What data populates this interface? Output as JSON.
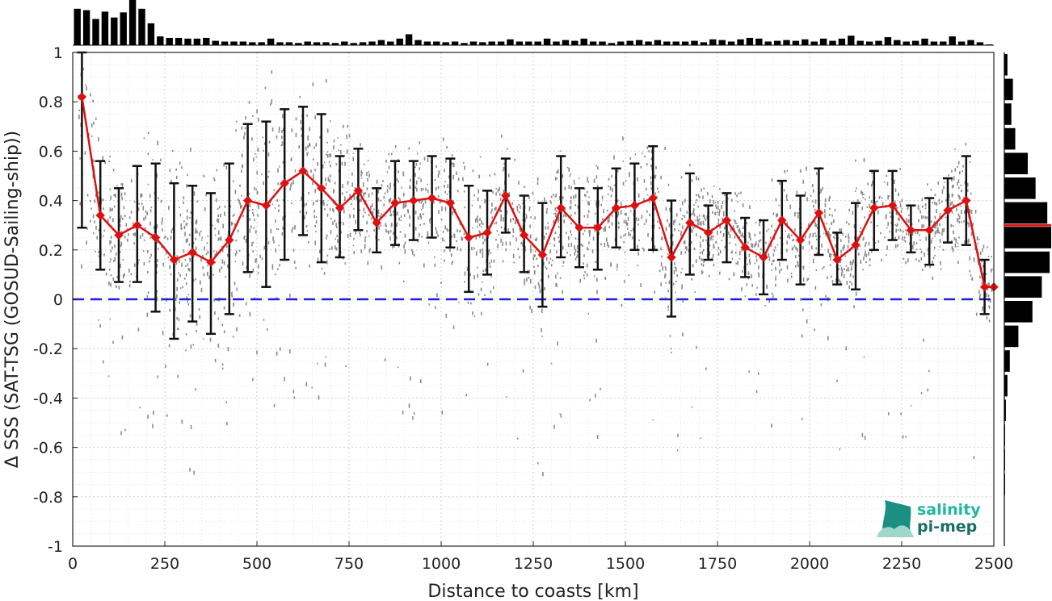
{
  "chart_data": {
    "type": "line",
    "xlabel": "Distance to coasts [km]",
    "ylabel": "Δ SSS (SAT-TSG (GOSUD-Sailing-ship))",
    "xlim": [
      0,
      2500
    ],
    "ylim": [
      -1,
      1
    ],
    "x_ticks": [
      "0",
      "250",
      "500",
      "750",
      "1000",
      "1250",
      "1500",
      "1750",
      "2000",
      "2250",
      "2500"
    ],
    "y_ticks": [
      "-1",
      "-0.8",
      "-0.6",
      "-0.4",
      "-0.2",
      "0",
      "0.2",
      "0.4",
      "0.6",
      "0.8",
      "1"
    ],
    "grid": true,
    "reference_line": {
      "y": 0,
      "color": "#1f1fd6",
      "style": "dashed"
    },
    "series": [
      {
        "color": "#dd1111",
        "marker": "diamond",
        "x": [
          25,
          75,
          125,
          175,
          225,
          275,
          325,
          375,
          425,
          475,
          525,
          575,
          625,
          675,
          725,
          775,
          825,
          875,
          925,
          975,
          1025,
          1075,
          1125,
          1175,
          1225,
          1275,
          1325,
          1375,
          1425,
          1475,
          1525,
          1575,
          1625,
          1675,
          1725,
          1775,
          1825,
          1875,
          1925,
          1975,
          2025,
          2075,
          2125,
          2175,
          2225,
          2275,
          2325,
          2375,
          2425,
          2475,
          2500
        ],
        "y": [
          0.82,
          0.34,
          0.26,
          0.3,
          0.25,
          0.16,
          0.19,
          0.15,
          0.24,
          0.4,
          0.38,
          0.47,
          0.52,
          0.45,
          0.37,
          0.44,
          0.31,
          0.39,
          0.4,
          0.41,
          0.39,
          0.25,
          0.27,
          0.42,
          0.26,
          0.18,
          0.37,
          0.29,
          0.29,
          0.37,
          0.38,
          0.41,
          0.17,
          0.31,
          0.27,
          0.32,
          0.21,
          0.17,
          0.32,
          0.24,
          0.35,
          0.16,
          0.22,
          0.37,
          0.38,
          0.28,
          0.28,
          0.36,
          0.4,
          0.05,
          0.05
        ],
        "err_low": [
          0.29,
          0.12,
          0.07,
          0.07,
          -0.05,
          -0.16,
          -0.09,
          -0.14,
          -0.06,
          0.11,
          0.05,
          0.16,
          0.26,
          0.15,
          0.17,
          0.28,
          0.19,
          0.22,
          0.24,
          0.25,
          0.21,
          0.03,
          0.1,
          0.27,
          0.11,
          -0.03,
          0.17,
          0.13,
          0.12,
          0.21,
          0.2,
          0.2,
          -0.07,
          0.1,
          0.16,
          0.15,
          0.09,
          0.02,
          0.16,
          0.06,
          0.18,
          0.06,
          0.04,
          0.2,
          0.24,
          0.19,
          0.14,
          0.23,
          0.22,
          -0.06,
          null
        ],
        "err_high": [
          1.0,
          0.56,
          0.45,
          0.54,
          0.55,
          0.47,
          0.46,
          0.43,
          0.55,
          0.71,
          0.72,
          0.77,
          0.78,
          0.75,
          0.58,
          0.61,
          0.45,
          0.56,
          0.56,
          0.58,
          0.57,
          0.46,
          0.44,
          0.57,
          0.42,
          0.39,
          0.58,
          0.45,
          0.45,
          0.53,
          0.55,
          0.62,
          0.4,
          0.51,
          0.38,
          0.43,
          0.33,
          0.32,
          0.48,
          0.42,
          0.53,
          0.27,
          0.39,
          0.52,
          0.52,
          0.38,
          0.41,
          0.49,
          0.58,
          0.16,
          null
        ]
      }
    ],
    "top_histogram": {
      "bin_width": 50,
      "counts": [
        50,
        48,
        36,
        46,
        38,
        45,
        62,
        50,
        30,
        12,
        10,
        10,
        9,
        9,
        10,
        6,
        5,
        5,
        5,
        4,
        4,
        9,
        4,
        4,
        3,
        5,
        4,
        4,
        3,
        5,
        3,
        4,
        5,
        7,
        5,
        9,
        15,
        7,
        5,
        5,
        4,
        5,
        3,
        5,
        4,
        5,
        5,
        8,
        5,
        5,
        5,
        9,
        5,
        7,
        6,
        9,
        5,
        5,
        3,
        5,
        6,
        7,
        5,
        7,
        5,
        5,
        5,
        6,
        4,
        8,
        7,
        5,
        8,
        10,
        9,
        5,
        6,
        7,
        6,
        8,
        5,
        9,
        6,
        9,
        13,
        6,
        5,
        6,
        11,
        7,
        5,
        6,
        9,
        5,
        5,
        12,
        5,
        7,
        4,
        1
      ]
    },
    "right_histogram": {
      "y_bin_edges": [
        1.0,
        0.9,
        0.8,
        0.7,
        0.6,
        0.5,
        0.4,
        0.3,
        0.2,
        0.1,
        0.0,
        -0.1,
        -0.2,
        -0.3,
        -0.4,
        -0.5,
        -0.6,
        -0.7,
        -0.8,
        -0.9,
        -1.0
      ],
      "counts": [
        4,
        11,
        9,
        14,
        30,
        40,
        55,
        60,
        58,
        48,
        36,
        18,
        7,
        4,
        2,
        1,
        1,
        1,
        0,
        0
      ],
      "median_y": 0.3,
      "median_color": "#dd1111"
    },
    "logo": {
      "line1": "salinity",
      "line2": "pi-mep"
    }
  }
}
